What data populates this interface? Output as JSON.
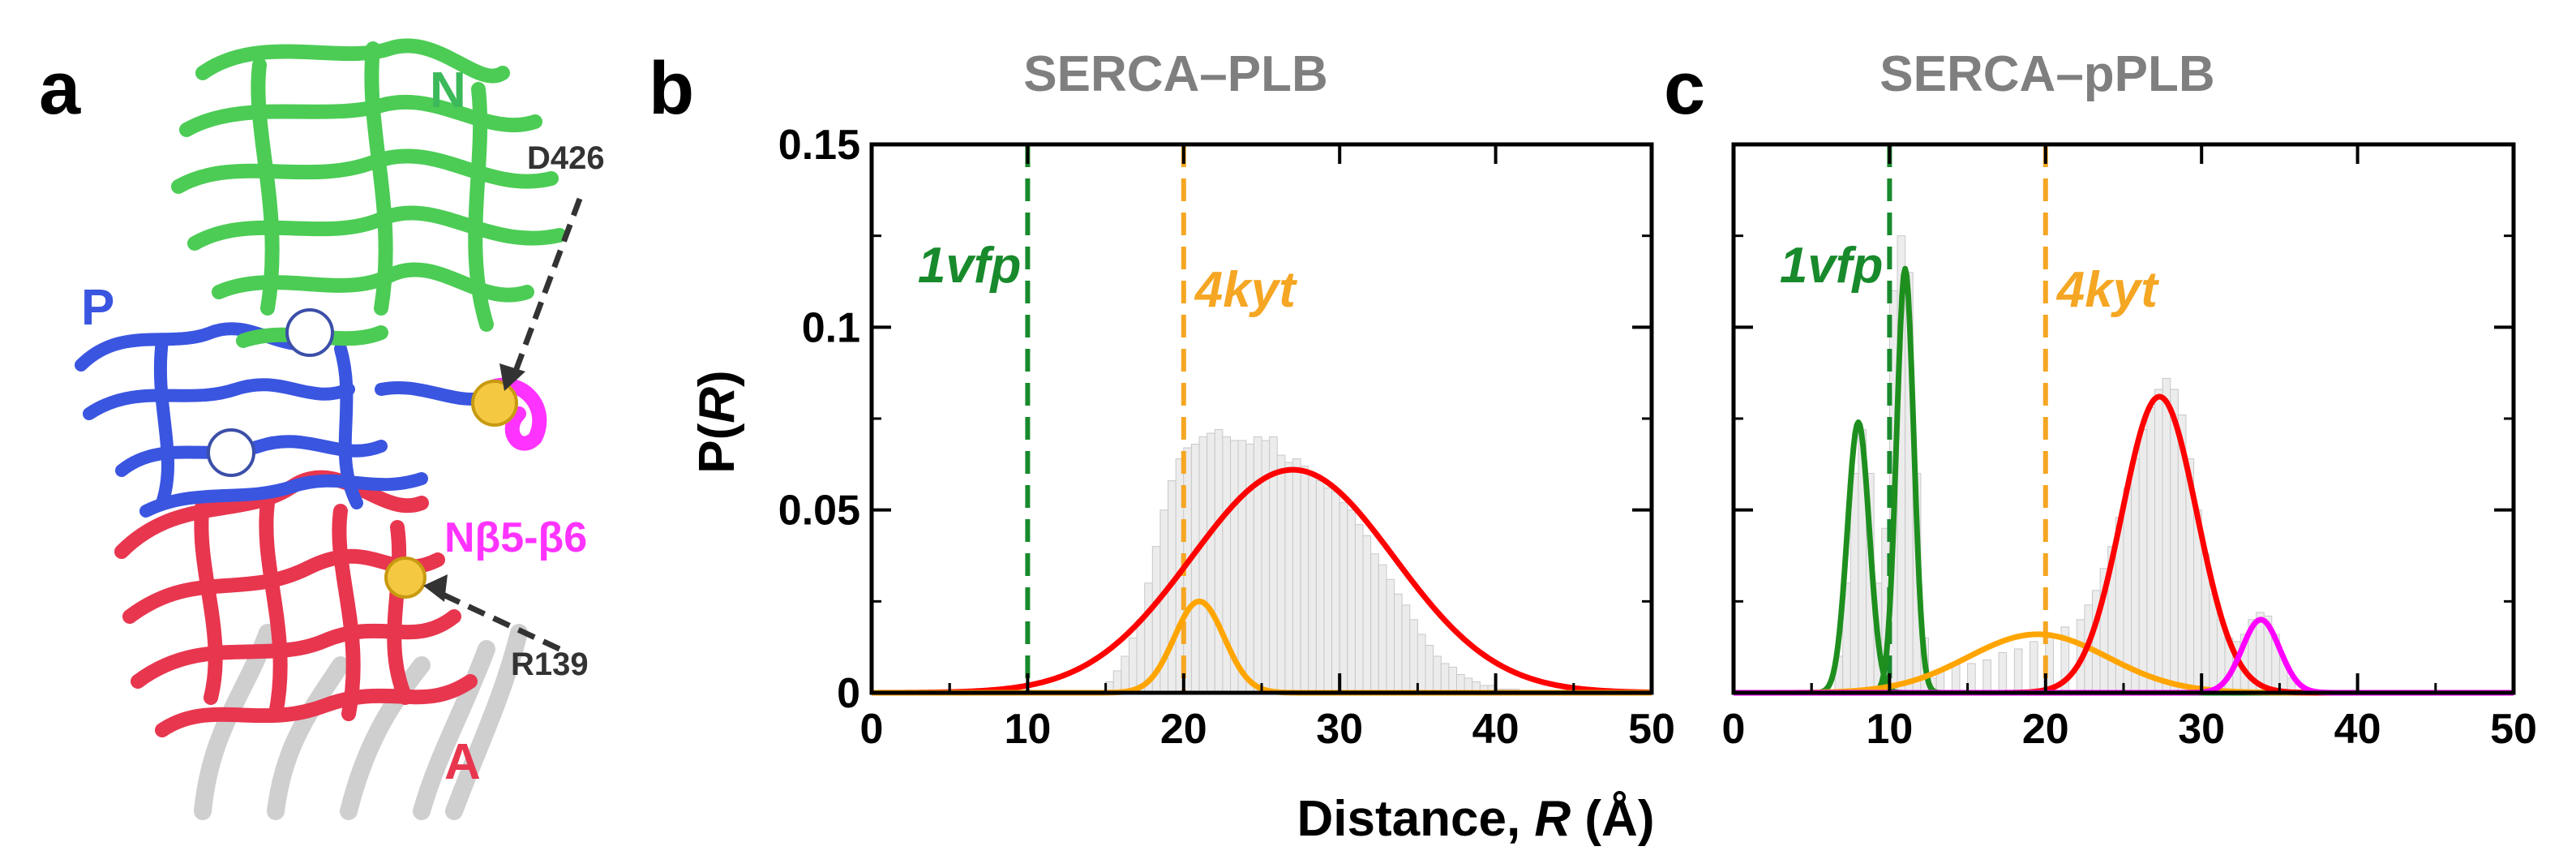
{
  "panel_a": {
    "letter": "a",
    "domains": {
      "N": "N",
      "P": "P",
      "A": "A",
      "loop": "Nβ5-β6"
    },
    "residues": {
      "top": "D426",
      "bottom": "R139"
    },
    "colors": {
      "N": "#3cb95a",
      "P": "#3a55e0",
      "A": "#e8364f",
      "loop": "#ff33ff"
    }
  },
  "shared_xlabel": {
    "prefix": "Distance, ",
    "var": "R",
    "suffix": " (Å)"
  },
  "chart_data": [
    {
      "type": "line",
      "panel": "b",
      "title": "SERCA–PLB",
      "ylabel_prefix": "P(",
      "ylabel_var": "R",
      "ylabel_suffix": ")",
      "xlim": [
        0,
        50
      ],
      "ylim": [
        0,
        0.15
      ],
      "xticks": [
        0,
        10,
        20,
        30,
        40,
        50
      ],
      "xtick_labels": [
        "0",
        "10",
        "20",
        "30",
        "40",
        "50"
      ],
      "yticks": [
        0,
        0.05,
        0.1,
        0.15
      ],
      "ytick_labels": [
        "0",
        "0.05",
        "0.1",
        "0.15"
      ],
      "reference_lines": [
        {
          "x": 10,
          "label": "1vfp",
          "color": "#188a2c"
        },
        {
          "x": 20,
          "label": "4kyt",
          "color": "#f5a623"
        }
      ],
      "series": [
        {
          "name": "gaussian-red",
          "color": "#ff0000",
          "mu": 27,
          "sigma": 6.5,
          "amp": 0.061
        },
        {
          "name": "gaussian-orange",
          "color": "#ffa500",
          "mu": 21,
          "sigma": 1.6,
          "amp": 0.025
        }
      ],
      "histogram": {
        "bin_width": 0.5,
        "x": [
          15,
          15.5,
          16,
          16.5,
          17,
          17.5,
          18,
          18.5,
          19,
          19.5,
          20,
          20.5,
          21,
          21.5,
          22,
          22.5,
          23,
          23.5,
          24,
          24.5,
          25,
          25.5,
          26,
          26.5,
          27,
          27.5,
          28,
          28.5,
          29,
          29.5,
          30,
          30.5,
          31,
          31.5,
          32,
          32.5,
          33,
          33.5,
          34,
          34.5,
          35,
          35.5,
          36,
          36.5,
          37,
          37.5,
          38,
          38.5,
          39,
          39.5,
          40,
          40.5,
          41
        ],
        "values": [
          0.003,
          0.006,
          0.01,
          0.015,
          0.02,
          0.03,
          0.04,
          0.05,
          0.058,
          0.064,
          0.067,
          0.068,
          0.07,
          0.071,
          0.072,
          0.07,
          0.069,
          0.069,
          0.068,
          0.07,
          0.069,
          0.07,
          0.065,
          0.063,
          0.064,
          0.062,
          0.06,
          0.058,
          0.056,
          0.055,
          0.052,
          0.05,
          0.046,
          0.043,
          0.038,
          0.035,
          0.031,
          0.027,
          0.024,
          0.02,
          0.016,
          0.013,
          0.01,
          0.008,
          0.007,
          0.005,
          0.004,
          0.003,
          0.002,
          0.002,
          0.001,
          0.001,
          0.001
        ]
      }
    },
    {
      "type": "line",
      "panel": "c",
      "title": "SERCA–pPLB",
      "xlim": [
        0,
        50
      ],
      "ylim": [
        0,
        0.15
      ],
      "xticks": [
        0,
        10,
        20,
        30,
        40,
        50
      ],
      "xtick_labels": [
        "0",
        "10",
        "20",
        "30",
        "40",
        "50"
      ],
      "yticks": [
        0,
        0.05,
        0.1,
        0.15
      ],
      "reference_lines": [
        {
          "x": 10,
          "label": "1vfp",
          "color": "#188a2c"
        },
        {
          "x": 20,
          "label": "4kyt",
          "color": "#f5a623"
        }
      ],
      "series": [
        {
          "name": "gaussian-green-1",
          "color": "#1e8f1e",
          "mu": 8,
          "sigma": 0.7,
          "amp": 0.074
        },
        {
          "name": "gaussian-green-2",
          "color": "#1e8f1e",
          "mu": 11,
          "sigma": 0.55,
          "amp": 0.116
        },
        {
          "name": "gaussian-orange",
          "color": "#ffa500",
          "mu": 19.5,
          "sigma": 4.5,
          "amp": 0.016
        },
        {
          "name": "gaussian-red",
          "color": "#ff0000",
          "mu": 27.3,
          "sigma": 2.4,
          "amp": 0.081
        },
        {
          "name": "gaussian-magenta",
          "color": "#ff00ff",
          "mu": 33.8,
          "sigma": 1.2,
          "amp": 0.02
        }
      ],
      "histogram": {
        "bin_width": 0.5,
        "x": [
          6.5,
          7,
          7.5,
          8,
          8.5,
          9,
          9.5,
          10,
          10.5,
          11,
          11.5,
          12,
          12.5,
          13,
          14,
          15,
          16,
          17,
          18,
          19,
          20,
          21,
          22,
          22.5,
          23,
          23.5,
          24,
          24.5,
          25,
          25.5,
          26,
          26.5,
          27,
          27.5,
          28,
          28.5,
          29,
          29.5,
          30,
          30.5,
          31,
          31.5,
          32,
          32.5,
          33,
          33.5,
          34,
          34.5,
          35,
          35.5
        ],
        "values": [
          0.01,
          0.03,
          0.06,
          0.072,
          0.06,
          0.03,
          0.045,
          0.11,
          0.125,
          0.115,
          0.06,
          0.015,
          0.004,
          0.006,
          0.008,
          0.008,
          0.009,
          0.011,
          0.012,
          0.014,
          0.016,
          0.018,
          0.02,
          0.024,
          0.028,
          0.034,
          0.04,
          0.048,
          0.056,
          0.064,
          0.072,
          0.078,
          0.083,
          0.086,
          0.083,
          0.076,
          0.064,
          0.05,
          0.038,
          0.027,
          0.02,
          0.015,
          0.014,
          0.016,
          0.02,
          0.022,
          0.021,
          0.016,
          0.009,
          0.004
        ]
      }
    }
  ]
}
